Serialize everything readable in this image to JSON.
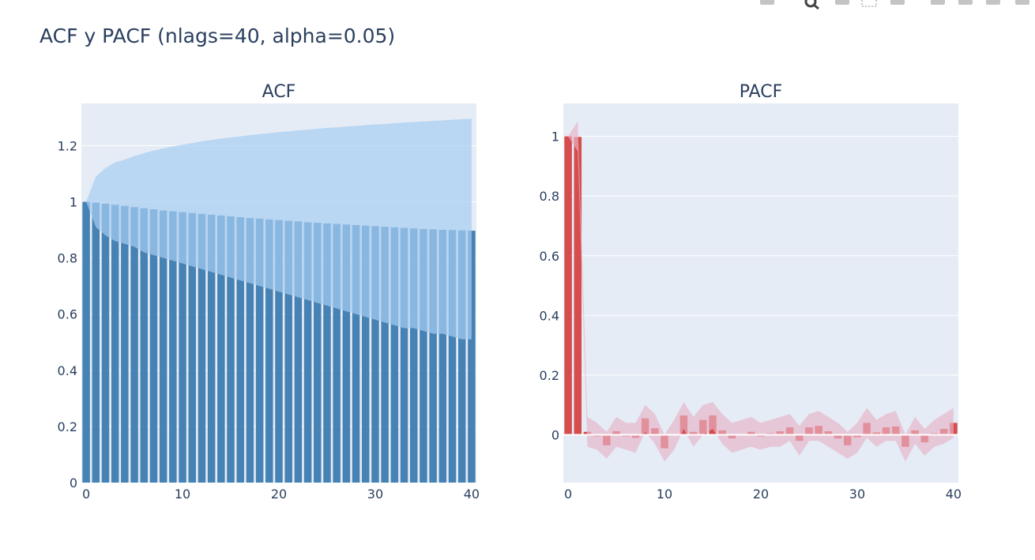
{
  "title": "ACF y PACF (nlags=40, alpha=0.05)",
  "modebar": {
    "icons": [
      "camera-icon",
      "zoom-icon",
      "pan-icon",
      "box-select-icon",
      "lasso-select-icon",
      "zoom-in-icon",
      "zoom-out-icon",
      "autoscale-icon",
      "reset-axes-icon",
      "plotly-logo-icon"
    ]
  },
  "colors": {
    "plot_bg": "#e5ecf6",
    "grid": "#ffffff",
    "acf_bar": "#4682b4",
    "acf_band": "#a6cdf2",
    "pacf_bar": "#d64d4d",
    "pacf_band": "#e6b3c6"
  },
  "chart_data": [
    {
      "type": "bar",
      "title": "ACF",
      "xlabel": "",
      "ylabel": "",
      "x": [
        0,
        1,
        2,
        3,
        4,
        5,
        6,
        7,
        8,
        9,
        10,
        11,
        12,
        13,
        14,
        15,
        16,
        17,
        18,
        19,
        20,
        21,
        22,
        23,
        24,
        25,
        26,
        27,
        28,
        29,
        30,
        31,
        32,
        33,
        34,
        35,
        36,
        37,
        38,
        39,
        40
      ],
      "values": [
        1.0,
        0.997,
        0.993,
        0.989,
        0.985,
        0.981,
        0.977,
        0.973,
        0.969,
        0.966,
        0.963,
        0.96,
        0.957,
        0.954,
        0.951,
        0.948,
        0.945,
        0.942,
        0.94,
        0.937,
        0.935,
        0.932,
        0.93,
        0.927,
        0.925,
        0.923,
        0.921,
        0.919,
        0.917,
        0.915,
        0.913,
        0.911,
        0.909,
        0.907,
        0.905,
        0.903,
        0.902,
        0.9,
        0.899,
        0.898,
        0.897
      ],
      "confidence_band": {
        "upper": [
          1.0,
          1.09,
          1.12,
          1.14,
          1.15,
          1.163,
          1.173,
          1.182,
          1.19,
          1.197,
          1.203,
          1.209,
          1.215,
          1.22,
          1.225,
          1.229,
          1.233,
          1.237,
          1.241,
          1.244,
          1.248,
          1.251,
          1.254,
          1.257,
          1.26,
          1.263,
          1.265,
          1.268,
          1.27,
          1.273,
          1.275,
          1.277,
          1.28,
          1.282,
          1.284,
          1.286,
          1.288,
          1.29,
          1.292,
          1.294,
          1.296
        ],
        "lower": [
          1.0,
          0.91,
          0.88,
          0.86,
          0.85,
          0.84,
          0.82,
          0.81,
          0.8,
          0.79,
          0.78,
          0.77,
          0.76,
          0.75,
          0.74,
          0.73,
          0.72,
          0.71,
          0.7,
          0.69,
          0.68,
          0.67,
          0.66,
          0.65,
          0.64,
          0.63,
          0.62,
          0.61,
          0.6,
          0.59,
          0.58,
          0.57,
          0.56,
          0.55,
          0.55,
          0.54,
          0.53,
          0.53,
          0.52,
          0.51,
          0.51
        ]
      },
      "xlim": [
        -0.5,
        40.5
      ],
      "ylim": [
        0,
        1.35
      ],
      "xticks": [
        0,
        10,
        20,
        30,
        40
      ],
      "xtick_labels": [
        "0",
        "10",
        "20",
        "30",
        "40"
      ],
      "yticks": [
        0,
        0.2,
        0.4,
        0.6,
        0.8,
        1,
        1.2
      ],
      "ytick_labels": [
        "0",
        "0.2",
        "0.4",
        "0.6",
        "0.8",
        "1",
        "1.2"
      ],
      "grid": true,
      "legend": "none"
    },
    {
      "type": "bar",
      "title": "PACF",
      "xlabel": "",
      "ylabel": "",
      "x": [
        0,
        1,
        2,
        3,
        4,
        5,
        6,
        7,
        8,
        9,
        10,
        11,
        12,
        13,
        14,
        15,
        16,
        17,
        18,
        19,
        20,
        21,
        22,
        23,
        24,
        25,
        26,
        27,
        28,
        29,
        30,
        31,
        32,
        33,
        34,
        35,
        36,
        37,
        38,
        39,
        40
      ],
      "values": [
        1.0,
        0.998,
        0.01,
        -0.005,
        -0.035,
        0.012,
        -0.005,
        -0.01,
        0.055,
        0.022,
        -0.045,
        0.002,
        0.065,
        0.01,
        0.05,
        0.065,
        0.015,
        -0.012,
        0.0,
        0.01,
        -0.005,
        0.005,
        0.012,
        0.025,
        -0.02,
        0.025,
        0.03,
        0.012,
        -0.012,
        -0.035,
        -0.008,
        0.04,
        0.008,
        0.025,
        0.028,
        -0.04,
        0.015,
        -0.025,
        0.005,
        0.02,
        0.04
      ],
      "confidence_band": {
        "upper": [
          1.0,
          1.05,
          0.06,
          0.04,
          0.01,
          0.06,
          0.04,
          0.04,
          0.1,
          0.07,
          0.0,
          0.05,
          0.11,
          0.06,
          0.1,
          0.11,
          0.07,
          0.04,
          0.05,
          0.06,
          0.04,
          0.05,
          0.06,
          0.07,
          0.03,
          0.07,
          0.08,
          0.06,
          0.04,
          0.01,
          0.04,
          0.09,
          0.05,
          0.07,
          0.08,
          0.0,
          0.06,
          0.02,
          0.05,
          0.07,
          0.09
        ],
        "lower": [
          1.0,
          0.95,
          -0.04,
          -0.05,
          -0.08,
          -0.04,
          -0.05,
          -0.06,
          0.01,
          -0.03,
          -0.09,
          -0.05,
          0.02,
          -0.04,
          0.0,
          0.02,
          -0.03,
          -0.06,
          -0.05,
          -0.04,
          -0.05,
          -0.04,
          -0.04,
          -0.02,
          -0.07,
          -0.02,
          -0.02,
          -0.04,
          -0.06,
          -0.08,
          -0.06,
          -0.01,
          -0.04,
          -0.02,
          -0.02,
          -0.09,
          -0.03,
          -0.07,
          -0.04,
          -0.03,
          -0.01
        ]
      },
      "xlim": [
        -0.5,
        40.5
      ],
      "ylim": [
        -0.16,
        1.11
      ],
      "xticks": [
        0,
        10,
        20,
        30,
        40
      ],
      "xtick_labels": [
        "0",
        "10",
        "20",
        "30",
        "40"
      ],
      "yticks": [
        0,
        0.2,
        0.4,
        0.6,
        0.8,
        1
      ],
      "ytick_labels": [
        "0",
        "0.2",
        "0.4",
        "0.6",
        "0.8",
        "1"
      ],
      "grid": true,
      "legend": "none"
    }
  ]
}
